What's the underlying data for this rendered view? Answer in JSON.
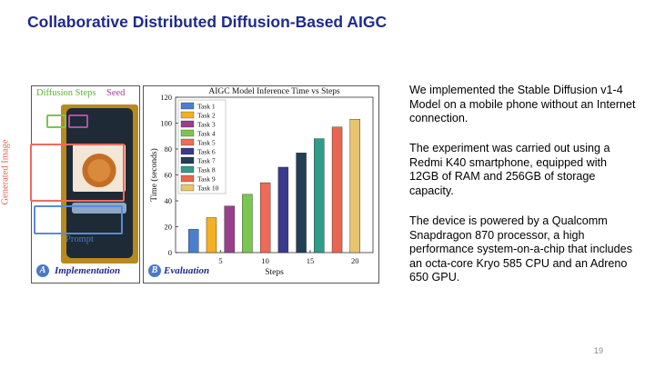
{
  "slide": {
    "title": "Collaborative Distributed Diffusion-Based AIGC",
    "page_number": "19"
  },
  "panel_a": {
    "letter": "A",
    "caption": "Implementation",
    "labels": {
      "diffusion_steps": "Diffusion Steps",
      "seed": "Seed",
      "generated_image": "Generated Image",
      "prompt": "Prompt"
    }
  },
  "panel_b": {
    "letter": "B",
    "caption": "Evaluation"
  },
  "chart_data": {
    "type": "bar",
    "title": "AIGC Model Inference Time vs Steps",
    "xlabel": "Steps",
    "ylabel": "Time (seconds)",
    "ylim": [
      0,
      120
    ],
    "yticks": [
      0,
      20,
      40,
      60,
      80,
      100,
      120
    ],
    "xticks": [
      5,
      10,
      15,
      20
    ],
    "x": [
      2,
      4,
      6,
      8,
      10,
      12,
      14,
      16,
      18,
      20
    ],
    "series": [
      {
        "name": "Task 1",
        "value": 18,
        "color": "#4a7fd0"
      },
      {
        "name": "Task 2",
        "value": 27,
        "color": "#f4b11e"
      },
      {
        "name": "Task 3",
        "value": 36,
        "color": "#9a3f8c"
      },
      {
        "name": "Task 4",
        "value": 45,
        "color": "#7ac74f"
      },
      {
        "name": "Task 5",
        "value": 54,
        "color": "#ef6a57"
      },
      {
        "name": "Task 6",
        "value": 66,
        "color": "#3a3a8c"
      },
      {
        "name": "Task 7",
        "value": 77,
        "color": "#223f55"
      },
      {
        "name": "Task 8",
        "value": 88,
        "color": "#2e9d8a"
      },
      {
        "name": "Task 9",
        "value": 97,
        "color": "#e8664f"
      },
      {
        "name": "Task 10",
        "value": 103,
        "color": "#e8c46c"
      }
    ],
    "legend": "top-left"
  },
  "body": {
    "p1": "We implemented the Stable Diffusion v1-4 Model on a mobile phone without an Internet connection.",
    "p2": "The experiment was carried out using a Redmi K40 smartphone, equipped with 12GB of RAM and 256GB of storage capacity.",
    "p3": "The device is powered by a Qualcomm Snapdragon 870 processor, a high performance system-on-a-chip that includes an octa-core Kryo 585 CPU and an Adreno 650 GPU."
  }
}
